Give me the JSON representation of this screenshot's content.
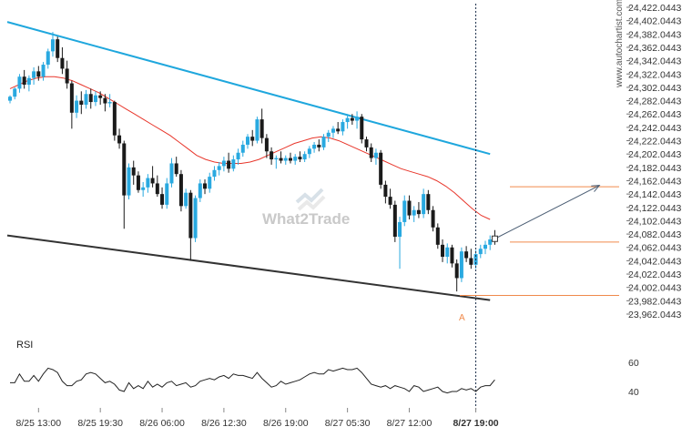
{
  "watermark": "What2Trade",
  "brand": "www.autochartist.com",
  "chart_data": {
    "type": "candlestick",
    "y_ticks": [
      "24,422.0443",
      "24,402.0443",
      "24,382.0443",
      "24,362.0443",
      "24,342.0443",
      "24,322.0443",
      "24,302.0443",
      "24,282.0443",
      "24,262.0443",
      "24,242.0443",
      "24,222.0443",
      "24,202.0443",
      "24,182.0443",
      "24,162.0443",
      "24,142.0443",
      "24,122.0443",
      "24,102.0443",
      "24,082.0443",
      "24,062.0443",
      "24,042.0443",
      "24,022.0443",
      "24,002.0443",
      "23,982.0443",
      "23,962.0443"
    ],
    "y_tick_values": [
      24422.0443,
      24402.0443,
      24382.0443,
      24362.0443,
      24342.0443,
      24322.0443,
      24302.0443,
      24282.0443,
      24262.0443,
      24242.0443,
      24222.0443,
      24202.0443,
      24182.0443,
      24162.0443,
      24142.0443,
      24122.0443,
      24102.0443,
      24082.0443,
      24062.0443,
      24042.0443,
      24022.0443,
      24002.0443,
      23982.0443,
      23962.0443
    ],
    "x_ticks": [
      "8/25 13:00",
      "8/25 19:30",
      "8/26 06:00",
      "8/26 12:30",
      "8/26 19:00",
      "8/27 05:30",
      "8/27 12:00",
      "8/27 19:00"
    ],
    "x_tick_index": [
      6,
      19,
      32,
      45,
      58,
      71,
      84,
      98
    ],
    "current_x_label": "8/27 19:00",
    "ylim": [
      23958,
      24428
    ],
    "candles": [
      {
        "o": 24282,
        "h": 24290,
        "l": 24278,
        "c": 24288
      },
      {
        "o": 24288,
        "h": 24302,
        "l": 24284,
        "c": 24300
      },
      {
        "o": 24300,
        "h": 24322,
        "l": 24294,
        "c": 24318
      },
      {
        "o": 24318,
        "h": 24328,
        "l": 24300,
        "c": 24306
      },
      {
        "o": 24306,
        "h": 24320,
        "l": 24296,
        "c": 24316
      },
      {
        "o": 24316,
        "h": 24332,
        "l": 24306,
        "c": 24326
      },
      {
        "o": 24326,
        "h": 24334,
        "l": 24312,
        "c": 24318
      },
      {
        "o": 24318,
        "h": 24340,
        "l": 24312,
        "c": 24336
      },
      {
        "o": 24336,
        "h": 24360,
        "l": 24330,
        "c": 24356
      },
      {
        "o": 24356,
        "h": 24385,
        "l": 24348,
        "c": 24374
      },
      {
        "o": 24374,
        "h": 24378,
        "l": 24340,
        "c": 24346
      },
      {
        "o": 24346,
        "h": 24362,
        "l": 24322,
        "c": 24330
      },
      {
        "o": 24330,
        "h": 24342,
        "l": 24300,
        "c": 24308
      },
      {
        "o": 24308,
        "h": 24312,
        "l": 24240,
        "c": 24264
      },
      {
        "o": 24264,
        "h": 24290,
        "l": 24256,
        "c": 24282
      },
      {
        "o": 24282,
        "h": 24296,
        "l": 24262,
        "c": 24276
      },
      {
        "o": 24276,
        "h": 24298,
        "l": 24270,
        "c": 24292
      },
      {
        "o": 24292,
        "h": 24300,
        "l": 24270,
        "c": 24280
      },
      {
        "o": 24280,
        "h": 24296,
        "l": 24274,
        "c": 24290
      },
      {
        "o": 24290,
        "h": 24296,
        "l": 24276,
        "c": 24286
      },
      {
        "o": 24286,
        "h": 24292,
        "l": 24266,
        "c": 24278
      },
      {
        "o": 24278,
        "h": 24292,
        "l": 24272,
        "c": 24280
      },
      {
        "o": 24280,
        "h": 24282,
        "l": 24222,
        "c": 24230
      },
      {
        "o": 24230,
        "h": 24240,
        "l": 24210,
        "c": 24218
      },
      {
        "o": 24218,
        "h": 24222,
        "l": 24090,
        "c": 24140
      },
      {
        "o": 24140,
        "h": 24188,
        "l": 24134,
        "c": 24182
      },
      {
        "o": 24182,
        "h": 24192,
        "l": 24156,
        "c": 24170
      },
      {
        "o": 24170,
        "h": 24176,
        "l": 24144,
        "c": 24148
      },
      {
        "o": 24148,
        "h": 24160,
        "l": 24138,
        "c": 24152
      },
      {
        "o": 24152,
        "h": 24172,
        "l": 24144,
        "c": 24166
      },
      {
        "o": 24166,
        "h": 24184,
        "l": 24152,
        "c": 24158
      },
      {
        "o": 24158,
        "h": 24170,
        "l": 24138,
        "c": 24142
      },
      {
        "o": 24142,
        "h": 24152,
        "l": 24120,
        "c": 24126
      },
      {
        "o": 24126,
        "h": 24166,
        "l": 24120,
        "c": 24158
      },
      {
        "o": 24158,
        "h": 24196,
        "l": 24152,
        "c": 24188
      },
      {
        "o": 24188,
        "h": 24198,
        "l": 24168,
        "c": 24172
      },
      {
        "o": 24172,
        "h": 24178,
        "l": 24116,
        "c": 24124
      },
      {
        "o": 24124,
        "h": 24150,
        "l": 24120,
        "c": 24144
      },
      {
        "o": 24144,
        "h": 24148,
        "l": 24042,
        "c": 24076
      },
      {
        "o": 24076,
        "h": 24140,
        "l": 24070,
        "c": 24136
      },
      {
        "o": 24136,
        "h": 24164,
        "l": 24130,
        "c": 24158
      },
      {
        "o": 24158,
        "h": 24164,
        "l": 24142,
        "c": 24150
      },
      {
        "o": 24150,
        "h": 24174,
        "l": 24144,
        "c": 24168
      },
      {
        "o": 24168,
        "h": 24184,
        "l": 24162,
        "c": 24178
      },
      {
        "o": 24178,
        "h": 24190,
        "l": 24170,
        "c": 24184
      },
      {
        "o": 24184,
        "h": 24198,
        "l": 24176,
        "c": 24192
      },
      {
        "o": 24192,
        "h": 24204,
        "l": 24174,
        "c": 24180
      },
      {
        "o": 24180,
        "h": 24200,
        "l": 24176,
        "c": 24194
      },
      {
        "o": 24194,
        "h": 24210,
        "l": 24186,
        "c": 24204
      },
      {
        "o": 24204,
        "h": 24222,
        "l": 24198,
        "c": 24216
      },
      {
        "o": 24216,
        "h": 24232,
        "l": 24210,
        "c": 24228
      },
      {
        "o": 24228,
        "h": 24238,
        "l": 24214,
        "c": 24222
      },
      {
        "o": 24222,
        "h": 24258,
        "l": 24218,
        "c": 24254
      },
      {
        "o": 24254,
        "h": 24270,
        "l": 24218,
        "c": 24226
      },
      {
        "o": 24226,
        "h": 24232,
        "l": 24196,
        "c": 24206
      },
      {
        "o": 24206,
        "h": 24212,
        "l": 24186,
        "c": 24194
      },
      {
        "o": 24194,
        "h": 24200,
        "l": 24180,
        "c": 24196
      },
      {
        "o": 24196,
        "h": 24206,
        "l": 24188,
        "c": 24192
      },
      {
        "o": 24192,
        "h": 24200,
        "l": 24186,
        "c": 24196
      },
      {
        "o": 24196,
        "h": 24204,
        "l": 24188,
        "c": 24192
      },
      {
        "o": 24192,
        "h": 24202,
        "l": 24186,
        "c": 24198
      },
      {
        "o": 24198,
        "h": 24206,
        "l": 24190,
        "c": 24194
      },
      {
        "o": 24194,
        "h": 24206,
        "l": 24190,
        "c": 24202
      },
      {
        "o": 24202,
        "h": 24214,
        "l": 24196,
        "c": 24210
      },
      {
        "o": 24210,
        "h": 24220,
        "l": 24204,
        "c": 24216
      },
      {
        "o": 24216,
        "h": 24224,
        "l": 24206,
        "c": 24212
      },
      {
        "o": 24212,
        "h": 24232,
        "l": 24208,
        "c": 24228
      },
      {
        "o": 24228,
        "h": 24238,
        "l": 24220,
        "c": 24234
      },
      {
        "o": 24234,
        "h": 24244,
        "l": 24226,
        "c": 24240
      },
      {
        "o": 24240,
        "h": 24250,
        "l": 24232,
        "c": 24236
      },
      {
        "o": 24236,
        "h": 24254,
        "l": 24230,
        "c": 24250
      },
      {
        "o": 24250,
        "h": 24262,
        "l": 24240,
        "c": 24256
      },
      {
        "o": 24256,
        "h": 24262,
        "l": 24246,
        "c": 24252
      },
      {
        "o": 24252,
        "h": 24266,
        "l": 24240,
        "c": 24258
      },
      {
        "o": 24258,
        "h": 24262,
        "l": 24218,
        "c": 24224
      },
      {
        "o": 24224,
        "h": 24228,
        "l": 24206,
        "c": 24212
      },
      {
        "o": 24212,
        "h": 24218,
        "l": 24190,
        "c": 24196
      },
      {
        "o": 24196,
        "h": 24210,
        "l": 24186,
        "c": 24204
      },
      {
        "o": 24204,
        "h": 24208,
        "l": 24150,
        "c": 24156
      },
      {
        "o": 24156,
        "h": 24162,
        "l": 24128,
        "c": 24138
      },
      {
        "o": 24138,
        "h": 24150,
        "l": 24120,
        "c": 24126
      },
      {
        "o": 24126,
        "h": 24132,
        "l": 24070,
        "c": 24078
      },
      {
        "o": 24078,
        "h": 24108,
        "l": 24030,
        "c": 24100
      },
      {
        "o": 24100,
        "h": 24140,
        "l": 24094,
        "c": 24132
      },
      {
        "o": 24132,
        "h": 24140,
        "l": 24104,
        "c": 24110
      },
      {
        "o": 24110,
        "h": 24124,
        "l": 24100,
        "c": 24118
      },
      {
        "o": 24118,
        "h": 24130,
        "l": 24106,
        "c": 24112
      },
      {
        "o": 24112,
        "h": 24150,
        "l": 24106,
        "c": 24142
      },
      {
        "o": 24142,
        "h": 24148,
        "l": 24112,
        "c": 24118
      },
      {
        "o": 24118,
        "h": 24124,
        "l": 24086,
        "c": 24092
      },
      {
        "o": 24092,
        "h": 24098,
        "l": 24060,
        "c": 24066
      },
      {
        "o": 24066,
        "h": 24074,
        "l": 24040,
        "c": 24048
      },
      {
        "o": 24048,
        "h": 24068,
        "l": 24038,
        "c": 24062
      },
      {
        "o": 24062,
        "h": 24066,
        "l": 24032,
        "c": 24038
      },
      {
        "o": 24038,
        "h": 24044,
        "l": 23996,
        "c": 24016
      },
      {
        "o": 24016,
        "h": 24062,
        "l": 24010,
        "c": 24056
      },
      {
        "o": 24056,
        "h": 24064,
        "l": 24040,
        "c": 24046
      },
      {
        "o": 24046,
        "h": 24060,
        "l": 24030,
        "c": 24036
      },
      {
        "o": 24036,
        "h": 24058,
        "l": 24030,
        "c": 24052
      },
      {
        "o": 24052,
        "h": 24066,
        "l": 24046,
        "c": 24060
      },
      {
        "o": 24060,
        "h": 24072,
        "l": 24052,
        "c": 24066
      },
      {
        "o": 24066,
        "h": 24080,
        "l": 24058,
        "c": 24074
      },
      {
        "o": 24074,
        "h": 24088,
        "l": 24066,
        "c": 24072
      }
    ],
    "ma_red": [
      24300,
      24306,
      24312,
      24316,
      24318,
      24318,
      24316,
      24312,
      24306,
      24300,
      24294,
      24286,
      24278,
      24270,
      24262,
      24254,
      24246,
      24238,
      24230,
      24220,
      24210,
      24200,
      24194,
      24190,
      24188,
      24188,
      24188,
      24190,
      24194,
      24200,
      24206,
      24212,
      24218,
      24222,
      24226,
      24228,
      24226,
      24222,
      24216,
      24210,
      24204,
      24198,
      24192,
      24186,
      24180,
      24176,
      24172,
      24168,
      24162,
      24154,
      24144,
      24132,
      24120,
      24110,
      24104
    ],
    "upper_line": {
      "from": [
        0,
        24400
      ],
      "to": [
        101,
        24202
      ]
    },
    "lower_line": {
      "from": [
        0,
        24080
      ],
      "to": [
        101,
        23983
      ]
    },
    "pattern_point_label": "A",
    "target_level": 24153.0,
    "entry_level": 24070.0,
    "support_level": 23990.0,
    "arrow": {
      "from": [
        102,
        24075
      ],
      "to": [
        124,
        24155
      ]
    },
    "rsi": {
      "title": "RSI",
      "ticks": [
        "60",
        "40"
      ],
      "tick_values": [
        60,
        40
      ],
      "ylim": [
        30,
        70
      ],
      "values": [
        46,
        46,
        52,
        47,
        47,
        51,
        47,
        52,
        56,
        55,
        53,
        47,
        44,
        44,
        47,
        48,
        52,
        53,
        52,
        49,
        46,
        47,
        45,
        41,
        40,
        46,
        42,
        44,
        42,
        47,
        43,
        45,
        43,
        46,
        47,
        44,
        45,
        46,
        43,
        44,
        47,
        48,
        49,
        48,
        50,
        51,
        49,
        52,
        51,
        51,
        50,
        49,
        53,
        49,
        46,
        43,
        44,
        47,
        45,
        46,
        47,
        48,
        50,
        52,
        53,
        52,
        52,
        55,
        54,
        55,
        56,
        55,
        55,
        56,
        53,
        49,
        45,
        44,
        43,
        44,
        42,
        44,
        43,
        42,
        40,
        44,
        43,
        40,
        41,
        42,
        43,
        40,
        39,
        40,
        40,
        42,
        41,
        42,
        40,
        43,
        44,
        44,
        48
      ]
    }
  }
}
